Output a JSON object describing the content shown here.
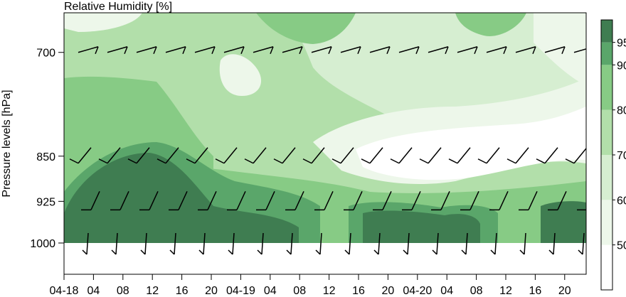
{
  "chart_data": {
    "type": "heatmap",
    "title": "Relative Humidity [%]",
    "ylabel": "Pressure levels [hPa]",
    "xlabel": "",
    "y_scale": "log",
    "y_ticks": [
      700,
      850,
      925,
      1000
    ],
    "ylim": [
      1000,
      650
    ],
    "x_tick_labels": [
      "04-18",
      "04",
      "08",
      "12",
      "16",
      "20",
      "04-19",
      "04",
      "08",
      "12",
      "16",
      "20",
      "04-20",
      "04",
      "08",
      "12",
      "16",
      "20"
    ],
    "grid": false,
    "legend": "colorbar-right",
    "colorbar": {
      "ticks": [
        50,
        60,
        70,
        80,
        90,
        95
      ],
      "levels": [
        40,
        50,
        60,
        70,
        80,
        90,
        95,
        100
      ],
      "colors": [
        "#ffffff",
        "#edf7ea",
        "#d6eed1",
        "#b2dfaa",
        "#87cb85",
        "#5aa66a",
        "#3f7d51"
      ]
    },
    "wind_barb_levels": [
      700,
      850,
      925,
      1000
    ]
  }
}
